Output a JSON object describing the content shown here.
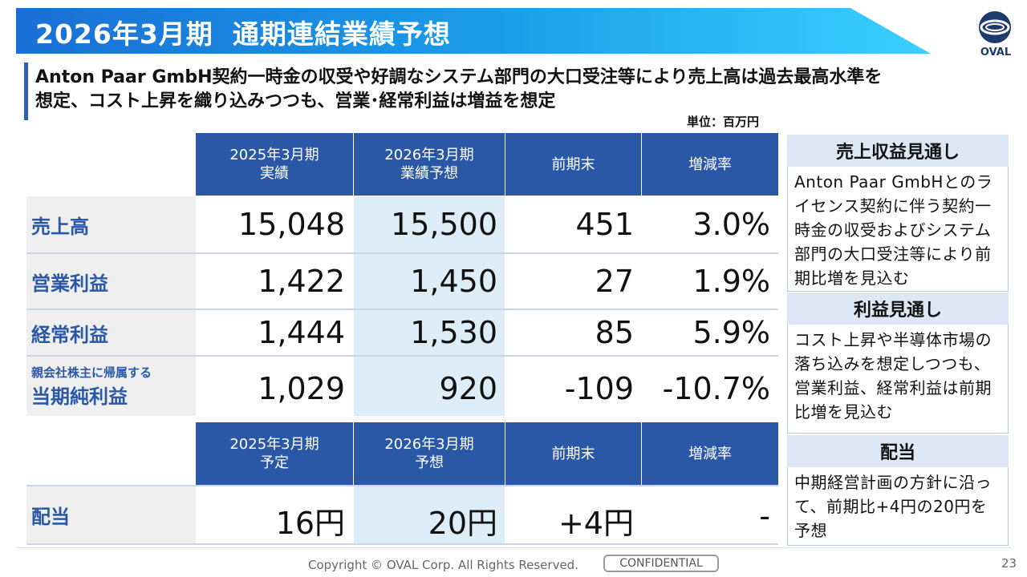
{
  "header": {
    "title_period": "2026年3月期",
    "title_main": "通期連結業績予想",
    "logo_text": "OVAL",
    "brand_color": "#1a8ae6"
  },
  "subtitle": {
    "line1": "Anton Paar GmbH契約一時金の収受や好調なシステム部門の大口受注等により売上高は過去最高水準を",
    "line2": "想定、コスト上昇を織り込みつつも、営業･経常利益は増益を想定"
  },
  "unit": "単位：百万円",
  "table": {
    "headers": [
      {
        "l1": "2025年3月期",
        "l2": "実績"
      },
      {
        "l1": "2026年3月期",
        "l2": "業績予想"
      },
      {
        "l1": "前期末",
        "l2": ""
      },
      {
        "l1": "増減率",
        "l2": ""
      }
    ],
    "rows": [
      {
        "label": "売上高",
        "values": [
          "15,048",
          "15,500",
          "451",
          "3.0%"
        ]
      },
      {
        "label": "営業利益",
        "values": [
          "1,422",
          "1,450",
          "27",
          "1.9%"
        ]
      },
      {
        "label": "経常利益",
        "values": [
          "1,444",
          "1,530",
          "85",
          "5.9%"
        ]
      },
      {
        "label_small": "親会社株主に帰属する",
        "label": "当期純利益",
        "values": [
          "1,029",
          "920",
          "-109",
          "-10.7%"
        ]
      }
    ],
    "div_headers": [
      {
        "l1": "2025年3月期",
        "l2": "予定"
      },
      {
        "l1": "2026年3月期",
        "l2": "予想"
      },
      {
        "l1": "前期末",
        "l2": ""
      },
      {
        "l1": "増減率",
        "l2": ""
      }
    ],
    "div_row": {
      "label": "配当",
      "values": [
        "16円",
        "20円",
        "+4円",
        "-"
      ]
    }
  },
  "side": [
    {
      "heading": "売上収益見通し",
      "body": "Anton Paar GmbHとのライセンス契約に伴う契約一時金の収受およびシステム部門の大口受注等により前期比増を見込む"
    },
    {
      "heading": "利益見通し",
      "body": "コスト上昇や半導体市場の落ち込みを想定しつつも、営業利益、経常利益は前期比増を見込む"
    },
    {
      "heading": "配当",
      "body": "中期経営計画の方針に沿って、前期比+4円の20円を予想"
    }
  ],
  "footer": {
    "copyright": "Copyright © OVAL Corp. All Rights Reserved.",
    "confidential": "CONFIDENTIAL",
    "page": "23"
  }
}
